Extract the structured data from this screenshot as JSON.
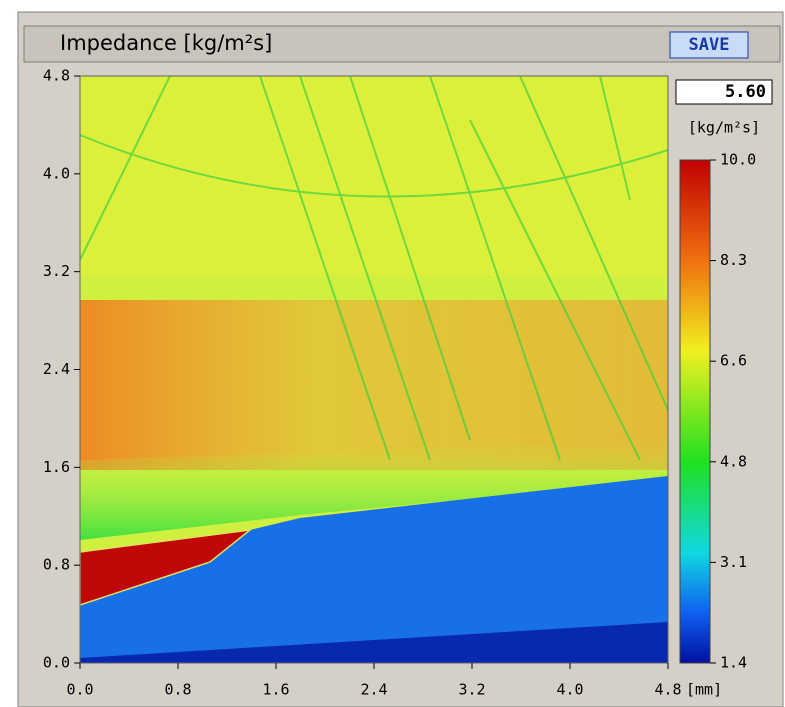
{
  "header": {
    "title": "Impedance [kg/m²s]",
    "button": "SAVE"
  },
  "readout": {
    "value": "5.60",
    "unit": "[kg/m²s]"
  },
  "colorbar": {
    "ticks": [
      "10.0",
      "8.3",
      "6.6",
      "4.8",
      "3.1",
      "1.4"
    ]
  },
  "axes": {
    "x_ticks": [
      "0.0",
      "0.8",
      "1.6",
      "2.4",
      "3.2",
      "4.0",
      "4.8"
    ],
    "y_ticks": [
      "4.8",
      "4.0",
      "3.2",
      "2.4",
      "1.6",
      "0.8",
      "0.0"
    ],
    "x_unit": "[mm]"
  }
}
